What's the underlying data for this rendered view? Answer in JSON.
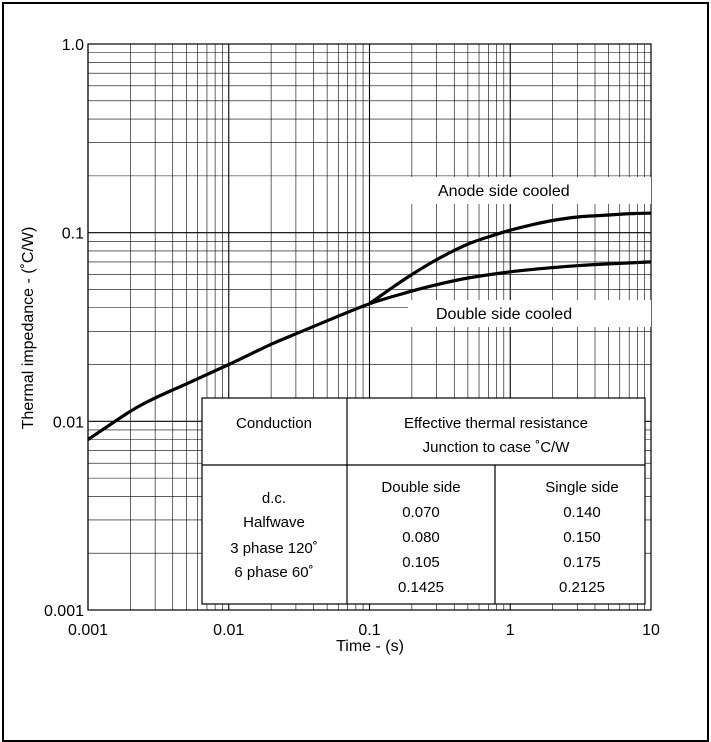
{
  "chart_data": {
    "type": "line",
    "x_scale": "log",
    "y_scale": "log",
    "xlim": [
      0.001,
      10
    ],
    "ylim": [
      0.001,
      1.0
    ],
    "xlabel": "Time - (s)",
    "ylabel": "Thermal impedance - (˚C/W)",
    "x_ticks": [
      "0.001",
      "0.01",
      "0.1",
      "1",
      "10"
    ],
    "y_ticks": [
      "0.001",
      "0.01",
      "0.1",
      "1.0"
    ],
    "grid": true,
    "series": [
      {
        "name": "Anode side cooled",
        "x": [
          0.1,
          0.15,
          0.2,
          0.3,
          0.5,
          0.8,
          1,
          1.5,
          2,
          3,
          5,
          7,
          10
        ],
        "y": [
          0.042,
          0.052,
          0.06,
          0.072,
          0.087,
          0.098,
          0.103,
          0.111,
          0.116,
          0.121,
          0.124,
          0.126,
          0.127
        ]
      },
      {
        "name": "Double side cooled",
        "x": [
          0.001,
          0.002,
          0.003,
          0.005,
          0.01,
          0.02,
          0.03,
          0.05,
          0.1,
          0.2,
          0.3,
          0.5,
          1,
          2,
          3,
          5,
          10
        ],
        "y": [
          0.008,
          0.0113,
          0.0133,
          0.0158,
          0.02,
          0.0256,
          0.0291,
          0.0341,
          0.042,
          0.049,
          0.053,
          0.0575,
          0.062,
          0.0653,
          0.0668,
          0.0683,
          0.07
        ]
      }
    ],
    "annotations": [
      "Anode side cooled",
      "Double side cooled"
    ],
    "table": {
      "headers": [
        "Conduction",
        "Effective thermal resistance",
        "Junction to case ˚C/W"
      ],
      "subheaders": [
        "Double side",
        "Single side"
      ],
      "rows": [
        {
          "conduction": "d.c.",
          "double": "0.070",
          "single": "0.140"
        },
        {
          "conduction": "Halfwave",
          "double": "0.080",
          "single": "0.150"
        },
        {
          "conduction": "3 phase 120˚",
          "double": "0.105",
          "single": "0.175"
        },
        {
          "conduction": "6 phase 60˚",
          "double": "0.1425",
          "single": "0.2125"
        }
      ]
    }
  }
}
